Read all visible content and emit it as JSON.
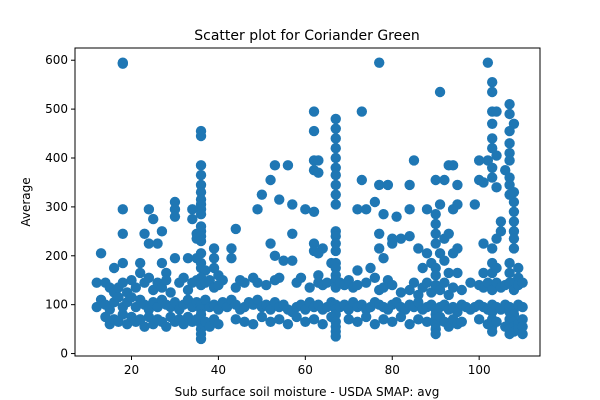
{
  "chart_data": {
    "type": "scatter",
    "title": "Scatter plot for Coriander Green",
    "xlabel": "Sub surface soil moisture - USDA SMAP: avg",
    "ylabel": "Average",
    "xlim": [
      7,
      114
    ],
    "ylim": [
      -5,
      625
    ],
    "xticks": [
      20,
      40,
      60,
      80,
      100
    ],
    "yticks": [
      0,
      100,
      200,
      300,
      400,
      500,
      600
    ],
    "grid": false,
    "point_color": "#1f77b4",
    "points": [
      [
        18,
        595
      ],
      [
        18,
        593
      ],
      [
        77,
        595
      ],
      [
        102,
        595
      ],
      [
        103,
        555
      ],
      [
        103,
        535
      ],
      [
        91,
        535
      ],
      [
        62,
        495
      ],
      [
        73,
        495
      ],
      [
        103,
        495
      ],
      [
        104,
        495
      ],
      [
        107,
        510
      ],
      [
        107,
        490
      ],
      [
        108,
        470
      ],
      [
        107,
        455
      ],
      [
        36,
        455
      ],
      [
        36,
        445
      ],
      [
        62,
        455
      ],
      [
        67,
        480
      ],
      [
        67,
        460
      ],
      [
        67,
        440
      ],
      [
        67,
        420
      ],
      [
        67,
        400
      ],
      [
        103,
        470
      ],
      [
        107,
        430
      ],
      [
        107,
        410
      ],
      [
        107,
        395
      ],
      [
        102,
        395
      ],
      [
        104,
        405
      ],
      [
        106,
        375
      ],
      [
        103,
        440
      ],
      [
        103,
        420
      ],
      [
        103,
        380
      ],
      [
        103,
        360
      ],
      [
        107,
        360
      ],
      [
        107,
        345
      ],
      [
        108,
        330
      ],
      [
        108,
        310
      ],
      [
        108,
        290
      ],
      [
        36,
        385
      ],
      [
        36,
        365
      ],
      [
        53,
        385
      ],
      [
        56,
        385
      ],
      [
        62,
        395
      ],
      [
        63,
        395
      ],
      [
        67,
        380
      ],
      [
        67,
        365
      ],
      [
        67,
        345
      ],
      [
        67,
        325
      ],
      [
        67,
        305
      ],
      [
        85,
        395
      ],
      [
        93,
        385
      ],
      [
        94,
        385
      ],
      [
        100,
        395
      ],
      [
        101,
        350
      ],
      [
        104,
        340
      ],
      [
        107,
        325
      ],
      [
        36,
        345
      ],
      [
        36,
        330
      ],
      [
        36,
        315
      ],
      [
        36,
        305
      ],
      [
        52,
        355
      ],
      [
        62,
        375
      ],
      [
        63,
        370
      ],
      [
        50,
        325
      ],
      [
        77,
        345
      ],
      [
        79,
        345
      ],
      [
        84,
        345
      ],
      [
        73,
        355
      ],
      [
        90,
        355
      ],
      [
        92,
        355
      ],
      [
        95,
        345
      ],
      [
        100,
        355
      ],
      [
        99,
        305
      ],
      [
        95,
        305
      ],
      [
        94,
        295
      ],
      [
        91,
        305
      ],
      [
        84,
        295
      ],
      [
        76,
        310
      ],
      [
        72,
        295
      ],
      [
        74,
        295
      ],
      [
        78,
        285
      ],
      [
        81,
        280
      ],
      [
        57,
        305
      ],
      [
        54,
        315
      ],
      [
        49,
        295
      ],
      [
        60,
        295
      ],
      [
        62,
        290
      ],
      [
        36,
        295
      ],
      [
        36,
        285
      ],
      [
        34,
        295
      ],
      [
        30,
        310
      ],
      [
        30,
        295
      ],
      [
        24,
        295
      ],
      [
        30,
        280
      ],
      [
        34,
        275
      ],
      [
        18,
        295
      ],
      [
        18,
        245
      ],
      [
        25,
        275
      ],
      [
        27,
        250
      ],
      [
        35,
        245
      ],
      [
        35,
        235
      ],
      [
        36,
        260
      ],
      [
        36,
        250
      ],
      [
        36,
        240
      ],
      [
        36,
        230
      ],
      [
        44,
        255
      ],
      [
        57,
        245
      ],
      [
        62,
        225
      ],
      [
        64,
        215
      ],
      [
        67,
        250
      ],
      [
        67,
        240
      ],
      [
        67,
        225
      ],
      [
        67,
        210
      ],
      [
        77,
        245
      ],
      [
        80,
        235
      ],
      [
        82,
        235
      ],
      [
        84,
        240
      ],
      [
        88,
        295
      ],
      [
        90,
        285
      ],
      [
        90,
        265
      ],
      [
        90,
        245
      ],
      [
        90,
        225
      ],
      [
        92,
        235
      ],
      [
        93,
        245
      ],
      [
        95,
        215
      ],
      [
        101,
        225
      ],
      [
        103,
        215
      ],
      [
        104,
        235
      ],
      [
        105,
        270
      ],
      [
        105,
        250
      ],
      [
        108,
        270
      ],
      [
        108,
        250
      ],
      [
        108,
        235
      ],
      [
        108,
        215
      ],
      [
        13,
        205
      ],
      [
        16,
        175
      ],
      [
        18,
        185
      ],
      [
        22,
        185
      ],
      [
        23,
        245
      ],
      [
        24,
        225
      ],
      [
        26,
        225
      ],
      [
        27,
        185
      ],
      [
        28,
        165
      ],
      [
        30,
        195
      ],
      [
        33,
        195
      ],
      [
        35,
        195
      ],
      [
        36,
        205
      ],
      [
        36,
        185
      ],
      [
        36,
        175
      ],
      [
        37,
        170
      ],
      [
        39,
        215
      ],
      [
        39,
        195
      ],
      [
        39,
        175
      ],
      [
        40,
        160
      ],
      [
        43,
        215
      ],
      [
        43,
        195
      ],
      [
        52,
        225
      ],
      [
        53,
        200
      ],
      [
        55,
        190
      ],
      [
        57,
        190
      ],
      [
        62,
        210
      ],
      [
        63,
        205
      ],
      [
        63,
        160
      ],
      [
        66,
        185
      ],
      [
        67,
        185
      ],
      [
        67,
        175
      ],
      [
        67,
        160
      ],
      [
        72,
        170
      ],
      [
        75,
        175
      ],
      [
        77,
        215
      ],
      [
        78,
        195
      ],
      [
        80,
        225
      ],
      [
        86,
        215
      ],
      [
        87,
        175
      ],
      [
        88,
        205
      ],
      [
        89,
        185
      ],
      [
        90,
        175
      ],
      [
        90,
        160
      ],
      [
        91,
        205
      ],
      [
        92,
        190
      ],
      [
        93,
        165
      ],
      [
        94,
        205
      ],
      [
        95,
        165
      ],
      [
        101,
        165
      ],
      [
        103,
        185
      ],
      [
        103,
        165
      ],
      [
        104,
        175
      ],
      [
        107,
        185
      ],
      [
        107,
        165
      ],
      [
        108,
        145
      ],
      [
        109,
        175
      ],
      [
        109,
        155
      ],
      [
        12,
        145
      ],
      [
        14,
        145
      ],
      [
        15,
        135
      ],
      [
        16,
        125
      ],
      [
        17,
        135
      ],
      [
        18,
        145
      ],
      [
        19,
        125
      ],
      [
        20,
        150
      ],
      [
        21,
        135
      ],
      [
        22,
        165
      ],
      [
        23,
        145
      ],
      [
        24,
        155
      ],
      [
        25,
        130
      ],
      [
        26,
        145
      ],
      [
        27,
        135
      ],
      [
        28,
        150
      ],
      [
        29,
        125
      ],
      [
        31,
        145
      ],
      [
        32,
        155
      ],
      [
        33,
        130
      ],
      [
        34,
        145
      ],
      [
        35,
        150
      ],
      [
        36,
        155
      ],
      [
        36,
        140
      ],
      [
        37,
        145
      ],
      [
        38,
        150
      ],
      [
        39,
        135
      ],
      [
        40,
        140
      ],
      [
        41,
        150
      ],
      [
        44,
        135
      ],
      [
        45,
        150
      ],
      [
        46,
        145
      ],
      [
        48,
        155
      ],
      [
        49,
        145
      ],
      [
        51,
        140
      ],
      [
        53,
        150
      ],
      [
        54,
        155
      ],
      [
        58,
        145
      ],
      [
        59,
        155
      ],
      [
        61,
        135
      ],
      [
        63,
        145
      ],
      [
        64,
        140
      ],
      [
        65,
        145
      ],
      [
        67,
        150
      ],
      [
        67,
        135
      ],
      [
        68,
        145
      ],
      [
        69,
        140
      ],
      [
        70,
        150
      ],
      [
        71,
        135
      ],
      [
        72,
        140
      ],
      [
        74,
        145
      ],
      [
        76,
        155
      ],
      [
        77,
        130
      ],
      [
        78,
        135
      ],
      [
        79,
        150
      ],
      [
        80,
        140
      ],
      [
        82,
        125
      ],
      [
        84,
        130
      ],
      [
        85,
        145
      ],
      [
        86,
        120
      ],
      [
        87,
        135
      ],
      [
        88,
        145
      ],
      [
        89,
        125
      ],
      [
        90,
        140
      ],
      [
        91,
        130
      ],
      [
        92,
        145
      ],
      [
        93,
        120
      ],
      [
        94,
        135
      ],
      [
        96,
        130
      ],
      [
        98,
        145
      ],
      [
        100,
        140
      ],
      [
        101,
        135
      ],
      [
        102,
        145
      ],
      [
        103,
        130
      ],
      [
        104,
        145
      ],
      [
        105,
        135
      ],
      [
        106,
        140
      ],
      [
        107,
        145
      ],
      [
        108,
        130
      ],
      [
        109,
        140
      ],
      [
        110,
        145
      ],
      [
        12,
        95
      ],
      [
        13,
        110
      ],
      [
        14,
        100
      ],
      [
        15,
        90
      ],
      [
        16,
        105
      ],
      [
        17,
        115
      ],
      [
        18,
        95
      ],
      [
        19,
        105
      ],
      [
        20,
        115
      ],
      [
        21,
        95
      ],
      [
        22,
        110
      ],
      [
        23,
        100
      ],
      [
        24,
        90
      ],
      [
        25,
        105
      ],
      [
        26,
        95
      ],
      [
        27,
        110
      ],
      [
        28,
        100
      ],
      [
        29,
        95
      ],
      [
        30,
        105
      ],
      [
        31,
        90
      ],
      [
        32,
        100
      ],
      [
        33,
        110
      ],
      [
        34,
        95
      ],
      [
        35,
        105
      ],
      [
        36,
        100
      ],
      [
        36,
        90
      ],
      [
        36,
        80
      ],
      [
        37,
        110
      ],
      [
        38,
        95
      ],
      [
        39,
        100
      ],
      [
        40,
        90
      ],
      [
        41,
        105
      ],
      [
        42,
        95
      ],
      [
        43,
        110
      ],
      [
        44,
        100
      ],
      [
        45,
        90
      ],
      [
        46,
        95
      ],
      [
        47,
        105
      ],
      [
        48,
        100
      ],
      [
        49,
        110
      ],
      [
        50,
        95
      ],
      [
        51,
        100
      ],
      [
        52,
        90
      ],
      [
        53,
        105
      ],
      [
        54,
        95
      ],
      [
        55,
        100
      ],
      [
        56,
        90
      ],
      [
        57,
        85
      ],
      [
        58,
        95
      ],
      [
        59,
        100
      ],
      [
        60,
        90
      ],
      [
        61,
        105
      ],
      [
        62,
        95
      ],
      [
        63,
        100
      ],
      [
        64,
        90
      ],
      [
        65,
        95
      ],
      [
        66,
        105
      ],
      [
        67,
        100
      ],
      [
        67,
        90
      ],
      [
        67,
        80
      ],
      [
        68,
        95
      ],
      [
        69,
        100
      ],
      [
        70,
        90
      ],
      [
        71,
        105
      ],
      [
        72,
        95
      ],
      [
        73,
        100
      ],
      [
        74,
        90
      ],
      [
        75,
        95
      ],
      [
        76,
        105
      ],
      [
        77,
        100
      ],
      [
        78,
        95
      ],
      [
        79,
        90
      ],
      [
        80,
        100
      ],
      [
        81,
        105
      ],
      [
        82,
        95
      ],
      [
        83,
        90
      ],
      [
        84,
        100
      ],
      [
        85,
        95
      ],
      [
        86,
        105
      ],
      [
        87,
        90
      ],
      [
        88,
        95
      ],
      [
        89,
        100
      ],
      [
        90,
        90
      ],
      [
        90,
        80
      ],
      [
        91,
        95
      ],
      [
        92,
        100
      ],
      [
        93,
        90
      ],
      [
        94,
        95
      ],
      [
        95,
        85
      ],
      [
        96,
        100
      ],
      [
        97,
        95
      ],
      [
        98,
        90
      ],
      [
        99,
        95
      ],
      [
        100,
        100
      ],
      [
        101,
        95
      ],
      [
        102,
        90
      ],
      [
        103,
        100
      ],
      [
        103,
        85
      ],
      [
        104,
        95
      ],
      [
        105,
        90
      ],
      [
        106,
        100
      ],
      [
        107,
        95
      ],
      [
        107,
        85
      ],
      [
        108,
        90
      ],
      [
        108,
        80
      ],
      [
        109,
        100
      ],
      [
        110,
        95
      ],
      [
        14,
        75
      ],
      [
        15,
        60
      ],
      [
        16,
        70
      ],
      [
        17,
        65
      ],
      [
        18,
        80
      ],
      [
        19,
        60
      ],
      [
        20,
        75
      ],
      [
        21,
        65
      ],
      [
        22,
        70
      ],
      [
        23,
        55
      ],
      [
        24,
        75
      ],
      [
        25,
        60
      ],
      [
        26,
        70
      ],
      [
        27,
        65
      ],
      [
        28,
        55
      ],
      [
        29,
        75
      ],
      [
        30,
        65
      ],
      [
        31,
        70
      ],
      [
        32,
        60
      ],
      [
        33,
        75
      ],
      [
        34,
        65
      ],
      [
        35,
        70
      ],
      [
        36,
        60
      ],
      [
        36,
        50
      ],
      [
        36,
        40
      ],
      [
        36,
        30
      ],
      [
        37,
        65
      ],
      [
        38,
        55
      ],
      [
        39,
        70
      ],
      [
        40,
        60
      ],
      [
        44,
        70
      ],
      [
        46,
        65
      ],
      [
        48,
        60
      ],
      [
        50,
        75
      ],
      [
        52,
        65
      ],
      [
        54,
        70
      ],
      [
        56,
        60
      ],
      [
        58,
        75
      ],
      [
        60,
        65
      ],
      [
        62,
        70
      ],
      [
        64,
        60
      ],
      [
        66,
        75
      ],
      [
        67,
        65
      ],
      [
        67,
        55
      ],
      [
        67,
        45
      ],
      [
        67,
        35
      ],
      [
        70,
        70
      ],
      [
        72,
        65
      ],
      [
        74,
        75
      ],
      [
        76,
        60
      ],
      [
        78,
        70
      ],
      [
        80,
        65
      ],
      [
        82,
        75
      ],
      [
        84,
        60
      ],
      [
        86,
        70
      ],
      [
        88,
        65
      ],
      [
        90,
        70
      ],
      [
        90,
        60
      ],
      [
        90,
        50
      ],
      [
        90,
        40
      ],
      [
        91,
        75
      ],
      [
        92,
        65
      ],
      [
        93,
        55
      ],
      [
        94,
        70
      ],
      [
        95,
        60
      ],
      [
        96,
        65
      ],
      [
        100,
        70
      ],
      [
        102,
        60
      ],
      [
        103,
        70
      ],
      [
        103,
        55
      ],
      [
        103,
        45
      ],
      [
        104,
        65
      ],
      [
        106,
        55
      ],
      [
        107,
        70
      ],
      [
        107,
        60
      ],
      [
        107,
        50
      ],
      [
        107,
        40
      ],
      [
        108,
        65
      ],
      [
        108,
        55
      ],
      [
        108,
        45
      ],
      [
        109,
        60
      ],
      [
        109,
        50
      ],
      [
        110,
        70
      ],
      [
        110,
        55
      ],
      [
        110,
        40
      ]
    ]
  }
}
